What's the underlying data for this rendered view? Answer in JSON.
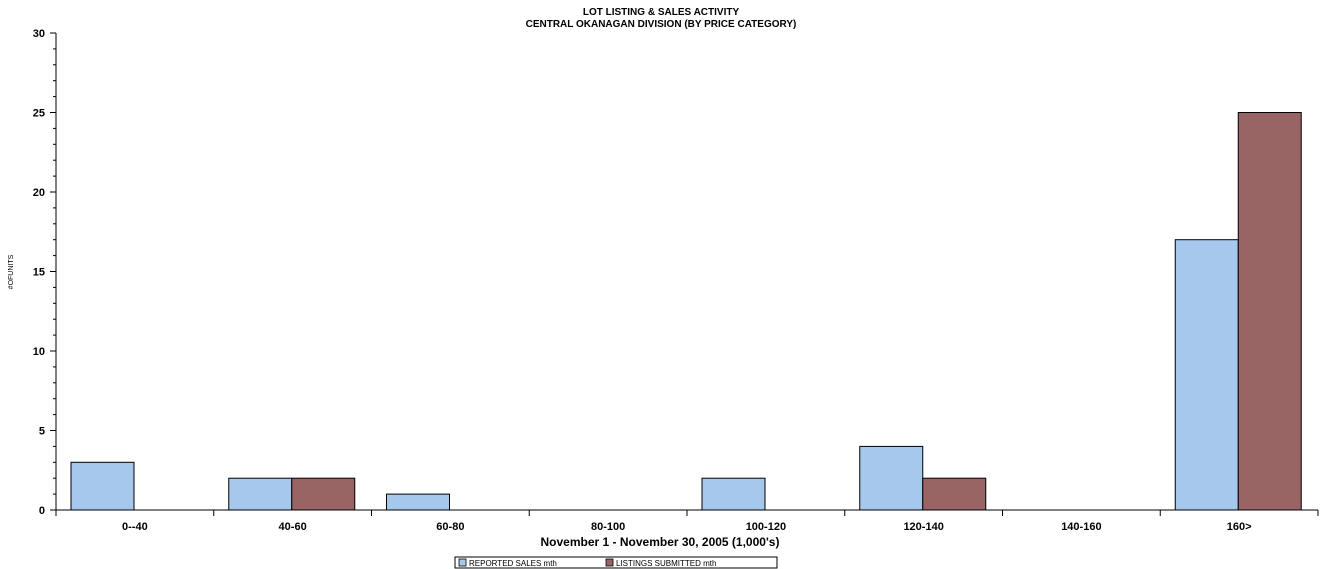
{
  "chart_data": {
    "type": "bar",
    "title": "LOT LISTING & SALES ACTIVITY",
    "subtitle": "CENTRAL OKANAGAN DIVISION (BY PRICE CATEGORY)",
    "xlabel": "November 1 - November 30, 2005 (1,000's)",
    "ylabel": "#OFUNITS",
    "ylim": [
      0,
      30
    ],
    "yticks": [
      "0",
      "5",
      "10",
      "15",
      "20",
      "25",
      "30"
    ],
    "categories": [
      "0--40",
      "40-60",
      "60-80",
      "80-100",
      "100-120",
      "120-140",
      "140-160",
      "160>"
    ],
    "series": [
      {
        "name": "REPORTED SALES mth",
        "color": "#a6c8ec",
        "values": [
          3,
          2,
          1,
          0,
          2,
          4,
          0,
          17
        ]
      },
      {
        "name": "LISTINGS SUBMITTED mth",
        "color": "#996464",
        "values": [
          0,
          2,
          0,
          0,
          0,
          2,
          0,
          25
        ]
      }
    ],
    "grid": false,
    "legend_position": "bottom"
  }
}
